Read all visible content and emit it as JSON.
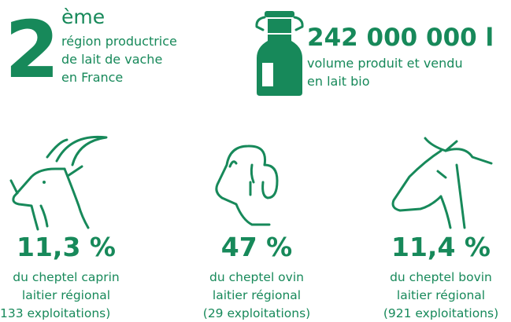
{
  "rank": {
    "number": "2",
    "suffix": "ème",
    "lines": [
      "région productrice",
      "de lait de vache",
      "en France"
    ]
  },
  "volume": {
    "number": "242 000 000 l",
    "lines": [
      "volume produit et vendu",
      "en lait bio"
    ]
  },
  "animals": [
    {
      "value": "11,3 %",
      "lines": [
        "du cheptel caprin",
        "laitier régional",
        "133 exploitations)"
      ]
    },
    {
      "value": "47 %",
      "lines": [
        "du cheptel ovin",
        "laitier régional",
        "(29 exploitations)"
      ]
    },
    {
      "value": "11,4 %",
      "lines": [
        "du cheptel bovin",
        "laitier régional",
        "(921 exploitations)"
      ]
    }
  ]
}
